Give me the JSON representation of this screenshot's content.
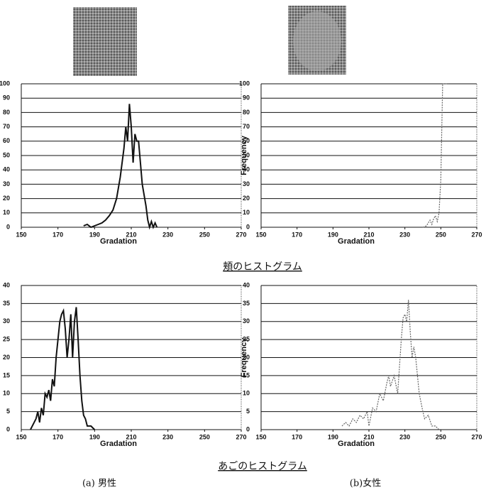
{
  "chart_data": [
    {
      "type": "line",
      "color": "#111111",
      "dashed": false,
      "xlabel": "Gradation",
      "x": [
        184,
        186,
        188,
        190,
        192,
        194,
        196,
        198,
        200,
        202,
        204,
        206,
        207,
        208,
        209,
        210,
        211,
        212,
        213,
        214,
        215,
        216,
        218,
        219,
        220,
        221,
        222,
        223,
        224
      ],
      "values": [
        1,
        2,
        0,
        1,
        2,
        3,
        5,
        8,
        12,
        20,
        35,
        55,
        70,
        60,
        86,
        70,
        45,
        65,
        60,
        60,
        45,
        30,
        15,
        5,
        0,
        4,
        0,
        3,
        0
      ],
      "xlim": [
        150,
        270
      ],
      "xticks": [
        150,
        170,
        190,
        210,
        230,
        250,
        270
      ],
      "ylim": [
        0,
        100
      ],
      "yticks": [
        0,
        10,
        20,
        30,
        40,
        50,
        60,
        70,
        80,
        90,
        100
      ],
      "grid": true
    },
    {
      "type": "line",
      "color": "#666666",
      "dashed": true,
      "xlabel": "Gradation",
      "ylabel": "Frequency",
      "x": [
        240,
        242,
        243,
        244,
        245,
        246,
        247,
        248,
        249,
        250,
        251,
        254
      ],
      "values": [
        0,
        1,
        3,
        5,
        2,
        6,
        8,
        4,
        10,
        33,
        100,
        100
      ],
      "xlim": [
        150,
        270
      ],
      "xticks": [
        150,
        170,
        190,
        210,
        230,
        250,
        270
      ],
      "ylim": [
        0,
        100
      ],
      "yticks": [
        0,
        10,
        20,
        30,
        40,
        50,
        60,
        70,
        80,
        90,
        100
      ],
      "grid": true
    },
    {
      "type": "line",
      "color": "#111111",
      "dashed": false,
      "xlabel": "Gradation",
      "x": [
        155,
        156,
        158,
        159,
        160,
        161,
        162,
        163,
        164,
        165,
        166,
        167,
        168,
        169,
        170,
        171,
        172,
        173,
        174,
        175,
        176,
        177,
        178,
        179,
        180,
        181,
        182,
        183,
        184,
        185,
        186,
        188,
        190
      ],
      "values": [
        0,
        1,
        3,
        5,
        2,
        6,
        4,
        10,
        9,
        11,
        8,
        14,
        12,
        20,
        25,
        30,
        32,
        33,
        28,
        20,
        25,
        32,
        20,
        30,
        34,
        25,
        15,
        8,
        4,
        3,
        1,
        1,
        0
      ],
      "xlim": [
        150,
        270
      ],
      "xticks": [
        150,
        170,
        190,
        210,
        230,
        250,
        270
      ],
      "ylim": [
        0,
        40
      ],
      "yticks": [
        0,
        5,
        10,
        15,
        20,
        25,
        30,
        35,
        40
      ],
      "grid": true
    },
    {
      "type": "line",
      "color": "#666666",
      "dashed": true,
      "xlabel": "Gradation",
      "ylabel": "Frequency",
      "x": [
        195,
        197,
        199,
        201,
        203,
        205,
        207,
        209,
        210,
        212,
        214,
        216,
        218,
        220,
        221,
        222,
        224,
        226,
        228,
        229,
        230,
        231,
        232,
        233,
        234,
        235,
        236,
        237,
        238,
        240,
        241,
        243,
        245,
        247,
        249
      ],
      "values": [
        1,
        2,
        1,
        3,
        2,
        4,
        3,
        5,
        1,
        6,
        5,
        10,
        8,
        13,
        15,
        12,
        15,
        10,
        25,
        31,
        32,
        30,
        36,
        27,
        20,
        23,
        20,
        15,
        10,
        5,
        3,
        4,
        1,
        1,
        0
      ],
      "xlim": [
        150,
        270
      ],
      "xticks": [
        150,
        170,
        190,
        210,
        230,
        250,
        270
      ],
      "ylim": [
        0,
        40
      ],
      "yticks": [
        0,
        5,
        10,
        15,
        20,
        25,
        30,
        35,
        40
      ],
      "grid": true
    }
  ],
  "captions": [
    "頬のヒストグラム",
    "あごのヒストグラム"
  ],
  "subcaptions": [
    "(a) 男性",
    "(b)女性"
  ]
}
